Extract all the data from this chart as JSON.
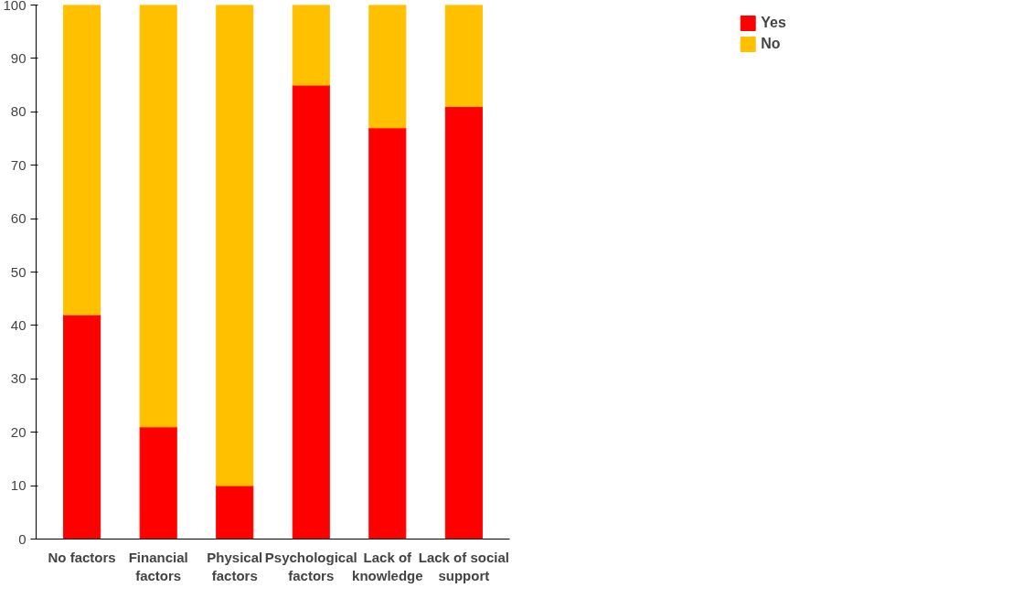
{
  "chart_data": {
    "type": "bar",
    "stacked": true,
    "categories": [
      "No factors",
      "Financial factors",
      "Physical factors",
      "Psychological factors",
      "Lack of knowledge",
      "Lack of social support"
    ],
    "series": [
      {
        "name": "Yes",
        "color": "#ff0000",
        "values": [
          42,
          21,
          10,
          85,
          77,
          81
        ]
      },
      {
        "name": "No",
        "color": "#ffc000",
        "values": [
          58,
          79,
          90,
          15,
          23,
          19
        ]
      }
    ],
    "ylim": [
      0,
      100
    ],
    "yticks": [
      0,
      10,
      20,
      30,
      40,
      50,
      60,
      70,
      80,
      90,
      100
    ],
    "grid": false,
    "legend": "top right"
  }
}
